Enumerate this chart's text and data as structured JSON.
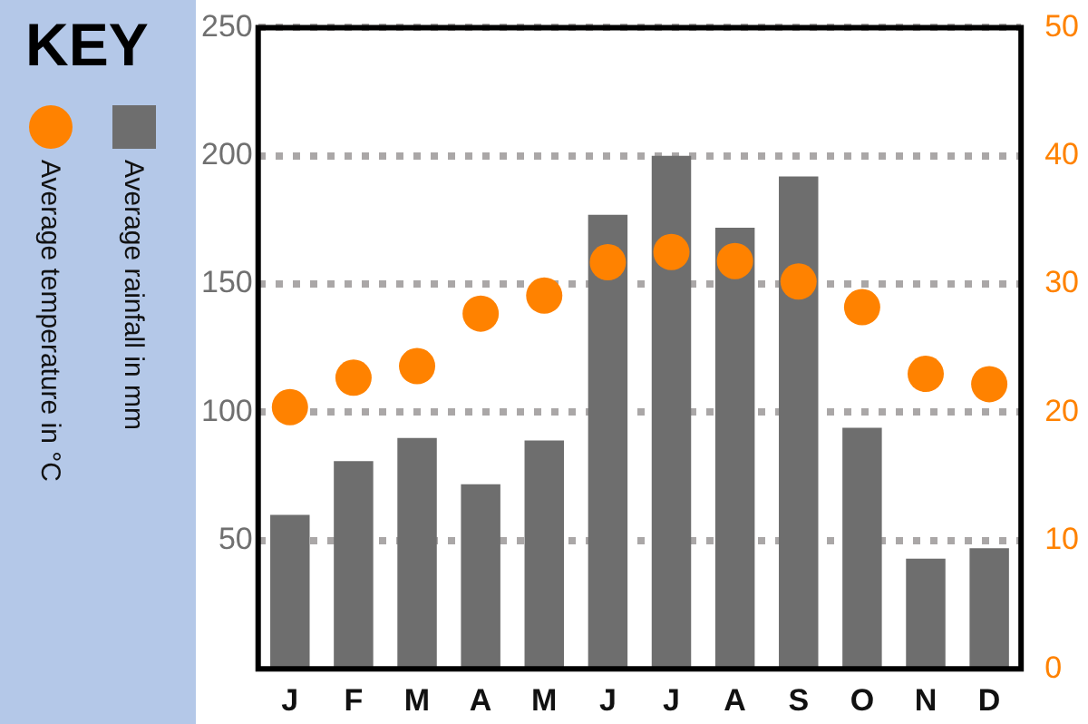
{
  "chart_data": {
    "type": "bar",
    "categories": [
      "J",
      "F",
      "M",
      "A",
      "M",
      "J",
      "J",
      "A",
      "S",
      "O",
      "N",
      "D"
    ],
    "series": [
      {
        "name": "Average temperature in °C",
        "type": "scatter",
        "axis": "y2",
        "color": "#ff8200",
        "values": [
          20.4,
          22.7,
          23.6,
          27.7,
          29.1,
          31.7,
          32.5,
          31.8,
          30.2,
          28.2,
          23,
          22.2
        ]
      },
      {
        "name": "Average rainfall in mm",
        "color": "#6e6e6e",
        "values": [
          60,
          81,
          90,
          72,
          89,
          177,
          200,
          172,
          192,
          94,
          43,
          47
        ]
      }
    ],
    "ylim": [
      0,
      250
    ],
    "yticks": [
      50,
      100,
      150,
      200,
      250
    ],
    "y2lim": [
      0,
      50
    ],
    "y2ticks": [
      0,
      10,
      20,
      30,
      40,
      50
    ],
    "legend_title": "KEY",
    "legend": "left",
    "grid": "y",
    "marker": "circle"
  }
}
